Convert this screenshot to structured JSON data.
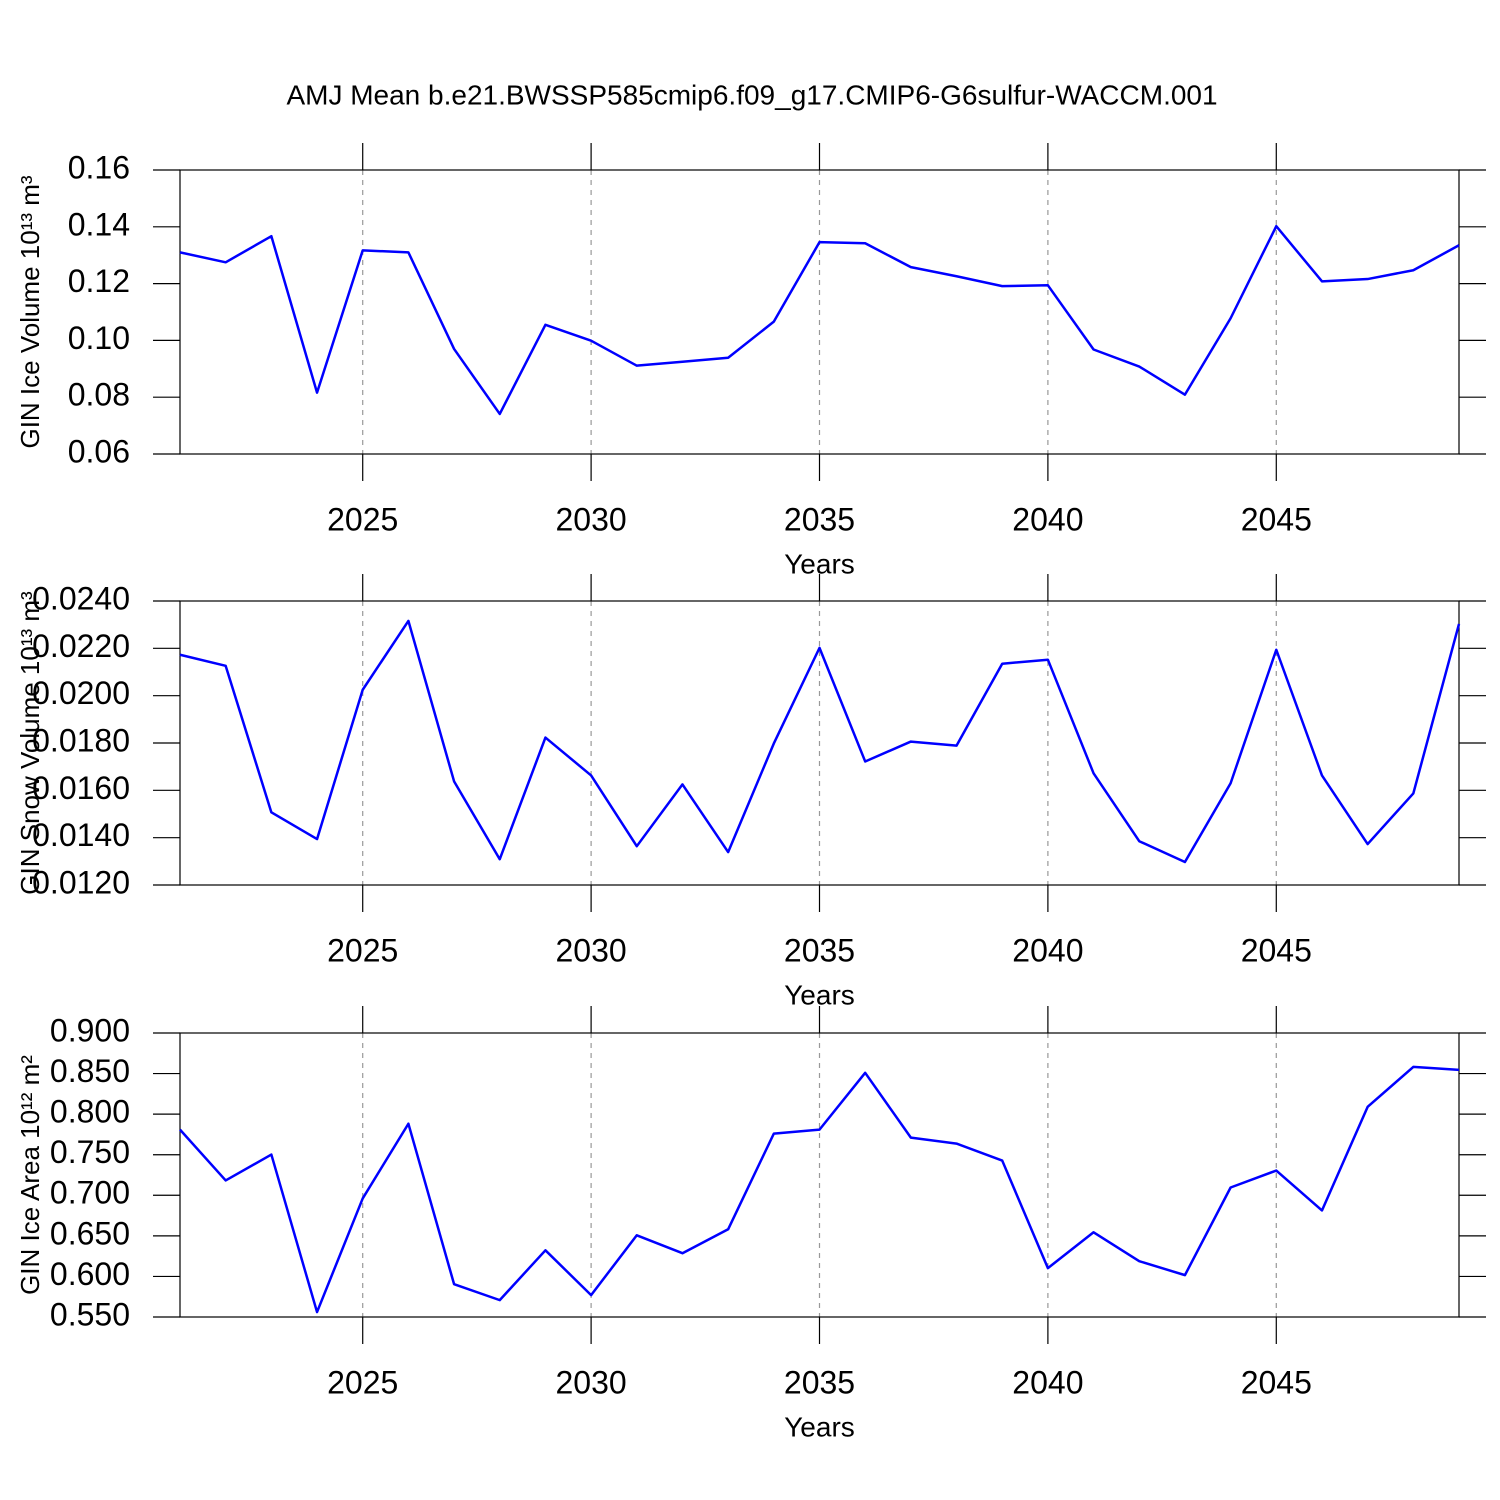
{
  "title": "AMJ Mean b.e21.BWSSP585cmip6.f09_g17.CMIP6-G6sulfur-WACCM.001",
  "chart_data": [
    {
      "type": "line",
      "ylabel": "GIN Ice Volume 10¹³ m³",
      "xlabel": "Years",
      "x": [
        2021,
        2022,
        2023,
        2024,
        2025,
        2026,
        2027,
        2028,
        2029,
        2030,
        2031,
        2032,
        2033,
        2034,
        2035,
        2036,
        2037,
        2038,
        2039,
        2040,
        2041,
        2042,
        2043,
        2044,
        2045,
        2046,
        2047,
        2048,
        2049
      ],
      "series": [
        {
          "color": "#0000ff",
          "values": [
            0.131,
            0.1275,
            0.1367,
            0.0816,
            0.1317,
            0.131,
            0.097,
            0.0741,
            0.1055,
            0.0999,
            0.0911,
            0.0925,
            0.0939,
            0.1066,
            0.1346,
            0.1342,
            0.1258,
            0.1226,
            0.1191,
            0.1194,
            0.0968,
            0.0908,
            0.0809,
            0.1078,
            0.1402,
            0.1208,
            0.1216,
            0.1247,
            0.1335
          ]
        }
      ],
      "xlim": [
        2021,
        2049
      ],
      "xticks": [
        2025,
        2030,
        2035,
        2040,
        2045
      ],
      "ylim": [
        0.06,
        0.16
      ],
      "yticks": [
        0.06,
        0.08,
        {
          "value": 0.1,
          "label": "0.10"
        },
        0.12,
        0.14,
        0.16
      ],
      "grid": true
    },
    {
      "type": "line",
      "ylabel": "GIN Snow Volume 10¹³ m³",
      "xlabel": "Years",
      "x": [
        2021,
        2022,
        2023,
        2024,
        2025,
        2026,
        2027,
        2028,
        2029,
        2030,
        2031,
        2032,
        2033,
        2034,
        2035,
        2036,
        2037,
        2038,
        2039,
        2040,
        2041,
        2042,
        2043,
        2044,
        2045,
        2046,
        2047,
        2048,
        2049
      ],
      "series": [
        {
          "color": "#0000ff",
          "values": [
            0.02173,
            0.02126,
            0.01507,
            0.01394,
            0.02025,
            0.02316,
            0.01638,
            0.01309,
            0.01823,
            0.01663,
            0.01364,
            0.01625,
            0.01339,
            0.01798,
            0.02202,
            0.01722,
            0.01806,
            0.01789,
            0.02135,
            0.02152,
            0.01672,
            0.01385,
            0.01297,
            0.0163,
            0.02194,
            0.01663,
            0.01373,
            0.01587,
            0.02303
          ]
        }
      ],
      "xlim": [
        2021,
        2049
      ],
      "xticks": [
        2025,
        2030,
        2035,
        2040,
        2045
      ],
      "ylim": [
        0.012,
        0.024
      ],
      "yticks": [
        {
          "value": 0.012,
          "label": "0.0120"
        },
        {
          "value": 0.014,
          "label": "0.0140"
        },
        {
          "value": 0.016,
          "label": "0.0160"
        },
        {
          "value": 0.018,
          "label": "0.0180"
        },
        {
          "value": 0.02,
          "label": "0.0200"
        },
        {
          "value": 0.022,
          "label": "0.0220"
        },
        {
          "value": 0.024,
          "label": "0.0240"
        }
      ],
      "grid": true
    },
    {
      "type": "line",
      "ylabel": "GIN Ice Area 10¹² m²",
      "xlabel": "Years",
      "x": [
        2021,
        2022,
        2023,
        2024,
        2025,
        2026,
        2027,
        2028,
        2029,
        2030,
        2031,
        2032,
        2033,
        2034,
        2035,
        2036,
        2037,
        2038,
        2039,
        2040,
        2041,
        2042,
        2043,
        2044,
        2045,
        2046,
        2047,
        2048,
        2049
      ],
      "series": [
        {
          "color": "#0000ff",
          "values": [
            0.7809,
            0.7183,
            0.7502,
            0.5561,
            0.6961,
            0.7882,
            0.5905,
            0.5708,
            0.6322,
            0.577,
            0.6507,
            0.6286,
            0.6581,
            0.776,
            0.7809,
            0.8509,
            0.7711,
            0.7637,
            0.7428,
            0.6102,
            0.6544,
            0.6188,
            0.6016,
            0.7096,
            0.7305,
            0.6813,
            0.809,
            0.8582,
            0.8545
          ]
        }
      ],
      "xlim": [
        2021,
        2049
      ],
      "xticks": [
        2025,
        2030,
        2035,
        2040,
        2045
      ],
      "ylim": [
        0.55,
        0.9
      ],
      "yticks": [
        {
          "value": 0.55,
          "label": "0.550"
        },
        {
          "value": 0.6,
          "label": "0.600"
        },
        {
          "value": 0.65,
          "label": "0.650"
        },
        {
          "value": 0.7,
          "label": "0.700"
        },
        {
          "value": 0.75,
          "label": "0.750"
        },
        {
          "value": 0.8,
          "label": "0.800"
        },
        {
          "value": 0.85,
          "label": "0.850"
        },
        {
          "value": 0.9,
          "label": "0.900"
        }
      ],
      "grid": true
    }
  ]
}
